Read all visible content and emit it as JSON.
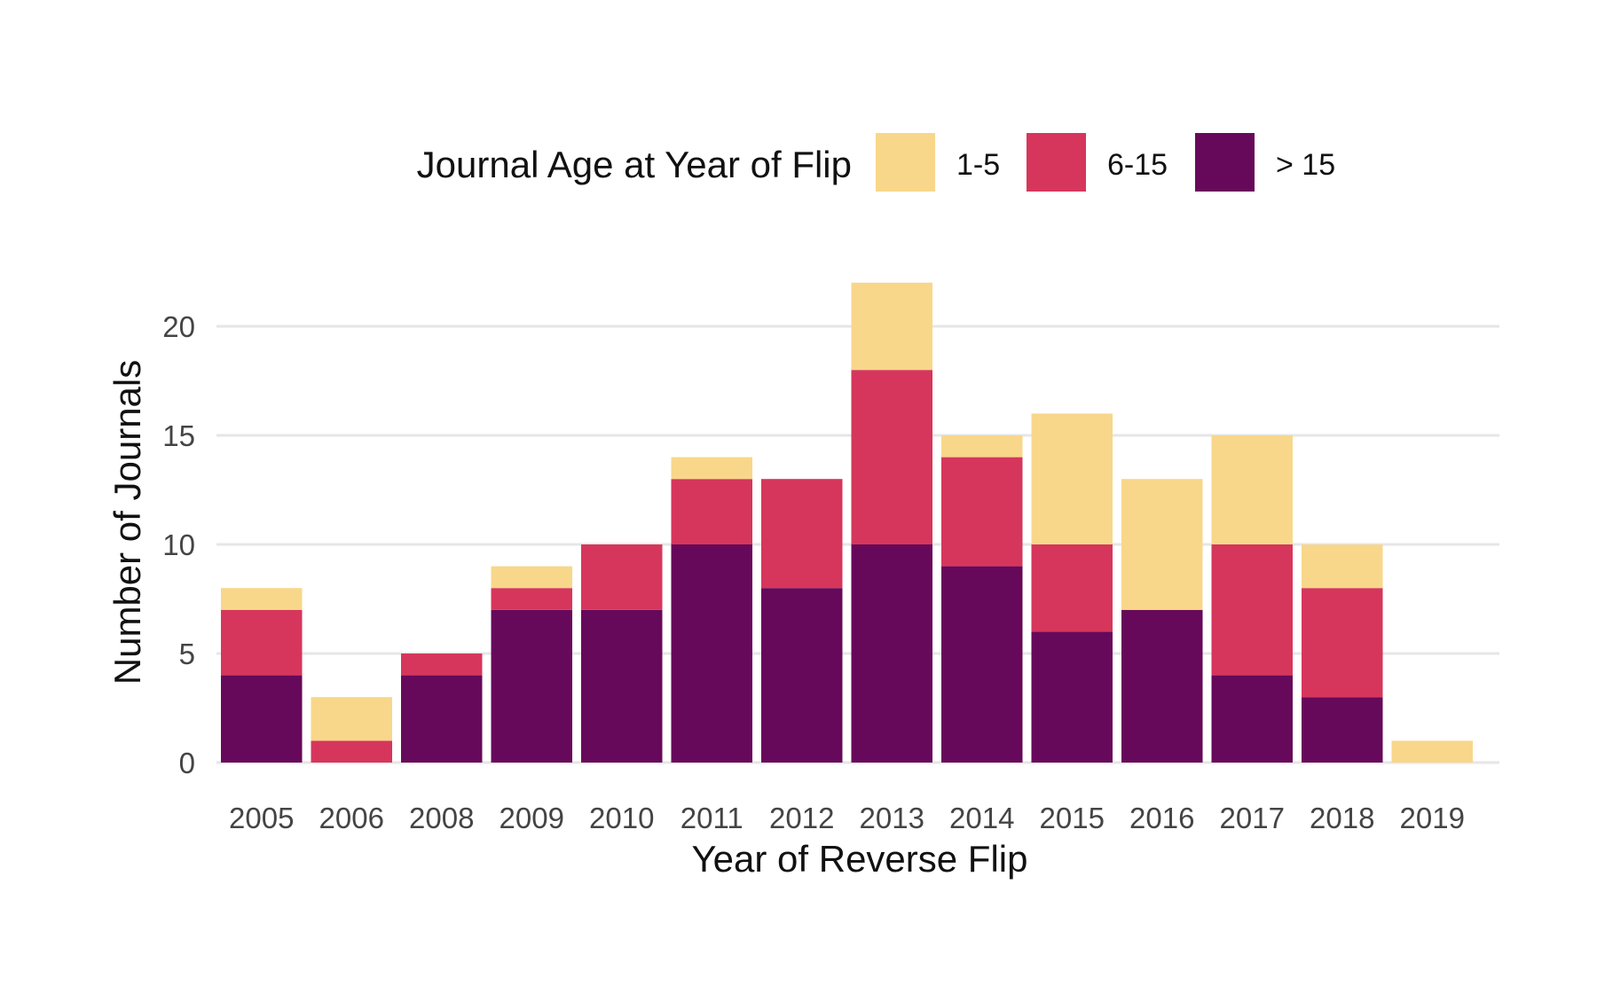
{
  "chart_data": {
    "type": "bar",
    "stacked": true,
    "categories": [
      "2005",
      "2006",
      "2008",
      "2009",
      "2010",
      "2011",
      "2012",
      "2013",
      "2014",
      "2015",
      "2016",
      "2017",
      "2018",
      "2019"
    ],
    "series": [
      {
        "name": "> 15",
        "color": "#67095a",
        "values": [
          4,
          0,
          4,
          7,
          7,
          10,
          8,
          10,
          9,
          6,
          7,
          4,
          3,
          0
        ]
      },
      {
        "name": "6-15",
        "color": "#d6365c",
        "values": [
          3,
          1,
          1,
          1,
          3,
          3,
          5,
          8,
          5,
          4,
          0,
          6,
          5,
          0
        ]
      },
      {
        "name": "1-5",
        "color": "#f8d78a",
        "values": [
          1,
          2,
          0,
          1,
          0,
          1,
          0,
          4,
          1,
          6,
          6,
          5,
          2,
          1
        ]
      }
    ],
    "legend": {
      "title": "Journal Age at Year of Flip",
      "order": [
        "1-5",
        "6-15",
        "> 15"
      ],
      "position": "top"
    },
    "xlabel": "Year of Reverse Flip",
    "ylabel": "Number of Journals",
    "ylim": [
      0,
      22
    ],
    "yticks": [
      0,
      5,
      10,
      15,
      20
    ],
    "grid": "horizontal major"
  }
}
